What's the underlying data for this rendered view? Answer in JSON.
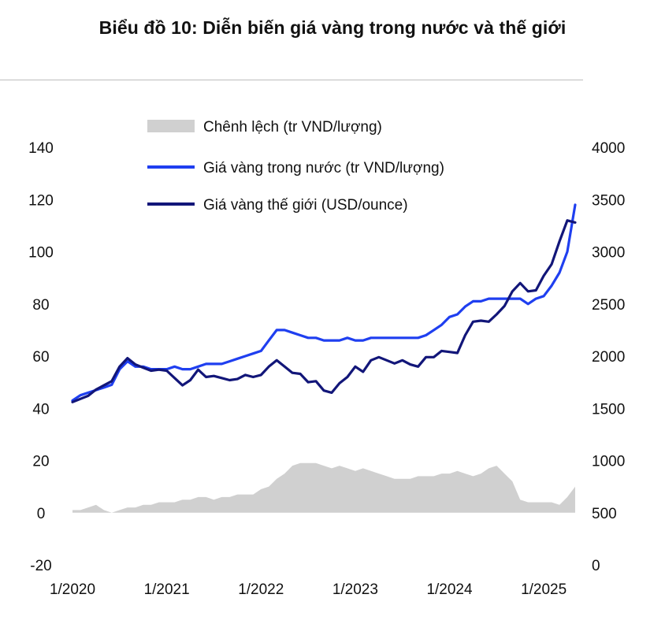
{
  "title": "Biểu đồ 10: Diễn biến giá vàng trong nước và thế giới",
  "chart_data": {
    "type": "line",
    "x_tick_labels": [
      "1/2020",
      "1/2021",
      "1/2022",
      "1/2023",
      "1/2024",
      "1/2025"
    ],
    "x_range": [
      "2020-01",
      "2025-05"
    ],
    "y_left": {
      "ticks": [
        "140",
        "120",
        "100",
        "80",
        "60",
        "40",
        "20",
        "0",
        "-20"
      ],
      "range": [
        -20,
        140
      ]
    },
    "y_right": {
      "ticks": [
        "4000",
        "3500",
        "3000",
        "2500",
        "2000",
        "1500",
        "1000",
        "500",
        "0"
      ],
      "range": [
        0,
        4000
      ]
    },
    "legend_position": "top-center",
    "legend": [
      "Chênh lệch (tr VND/lượng)",
      "Giá vàng trong nước (tr VND/lượng)",
      "Giá vàng thế giới (USD/ounce)"
    ],
    "x": [
      "2020-01",
      "2020-02",
      "2020-03",
      "2020-04",
      "2020-05",
      "2020-06",
      "2020-07",
      "2020-08",
      "2020-09",
      "2020-10",
      "2020-11",
      "2020-12",
      "2021-01",
      "2021-02",
      "2021-03",
      "2021-04",
      "2021-05",
      "2021-06",
      "2021-07",
      "2021-08",
      "2021-09",
      "2021-10",
      "2021-11",
      "2021-12",
      "2022-01",
      "2022-02",
      "2022-03",
      "2022-04",
      "2022-05",
      "2022-06",
      "2022-07",
      "2022-08",
      "2022-09",
      "2022-10",
      "2022-11",
      "2022-12",
      "2023-01",
      "2023-02",
      "2023-03",
      "2023-04",
      "2023-05",
      "2023-06",
      "2023-07",
      "2023-08",
      "2023-09",
      "2023-10",
      "2023-11",
      "2023-12",
      "2024-01",
      "2024-02",
      "2024-03",
      "2024-04",
      "2024-05",
      "2024-06",
      "2024-07",
      "2024-08",
      "2024-09",
      "2024-10",
      "2024-11",
      "2024-12",
      "2025-01",
      "2025-02",
      "2025-03",
      "2025-04",
      "2025-05"
    ],
    "series": [
      {
        "name": "Chênh lệch (tr VND/lượng)",
        "type": "area",
        "axis": "left",
        "color": "#d0d0d0",
        "values": [
          1,
          1,
          2,
          3,
          1,
          0,
          1,
          2,
          2,
          3,
          3,
          4,
          4,
          4,
          5,
          5,
          6,
          6,
          5,
          6,
          6,
          7,
          7,
          7,
          9,
          10,
          13,
          15,
          18,
          19,
          19,
          19,
          18,
          17,
          18,
          17,
          16,
          17,
          16,
          15,
          14,
          13,
          13,
          13,
          14,
          14,
          14,
          15,
          15,
          16,
          15,
          14,
          15,
          17,
          18,
          15,
          12,
          5,
          4,
          4,
          4,
          4,
          3,
          6,
          10
        ]
      },
      {
        "name": "Giá vàng trong nước (tr VND/lượng)",
        "type": "line",
        "axis": "left",
        "color": "#1f3ff0",
        "values": [
          43,
          45,
          46,
          47,
          48,
          49,
          55,
          58,
          56,
          56,
          55,
          55,
          55,
          56,
          55,
          55,
          56,
          57,
          57,
          57,
          58,
          59,
          60,
          61,
          62,
          66,
          70,
          70,
          69,
          68,
          67,
          67,
          66,
          66,
          66,
          67,
          66,
          66,
          67,
          67,
          67,
          67,
          67,
          67,
          67,
          68,
          70,
          72,
          75,
          76,
          79,
          81,
          81,
          82,
          82,
          82,
          82,
          82,
          80,
          82,
          83,
          87,
          92,
          100,
          118
        ]
      },
      {
        "name": "Giá vàng thế giới (USD/ounce)",
        "type": "line",
        "axis": "right",
        "color": "#121679",
        "values": [
          1560,
          1590,
          1620,
          1680,
          1720,
          1760,
          1900,
          1980,
          1920,
          1890,
          1860,
          1870,
          1860,
          1790,
          1720,
          1770,
          1870,
          1800,
          1810,
          1790,
          1770,
          1780,
          1820,
          1800,
          1820,
          1900,
          1960,
          1900,
          1840,
          1830,
          1750,
          1760,
          1670,
          1650,
          1740,
          1800,
          1900,
          1850,
          1960,
          1990,
          1960,
          1930,
          1960,
          1920,
          1900,
          1990,
          1990,
          2050,
          2040,
          2030,
          2200,
          2330,
          2340,
          2330,
          2400,
          2480,
          2620,
          2700,
          2620,
          2630,
          2770,
          2880,
          3100,
          3300,
          3280
        ]
      }
    ]
  }
}
